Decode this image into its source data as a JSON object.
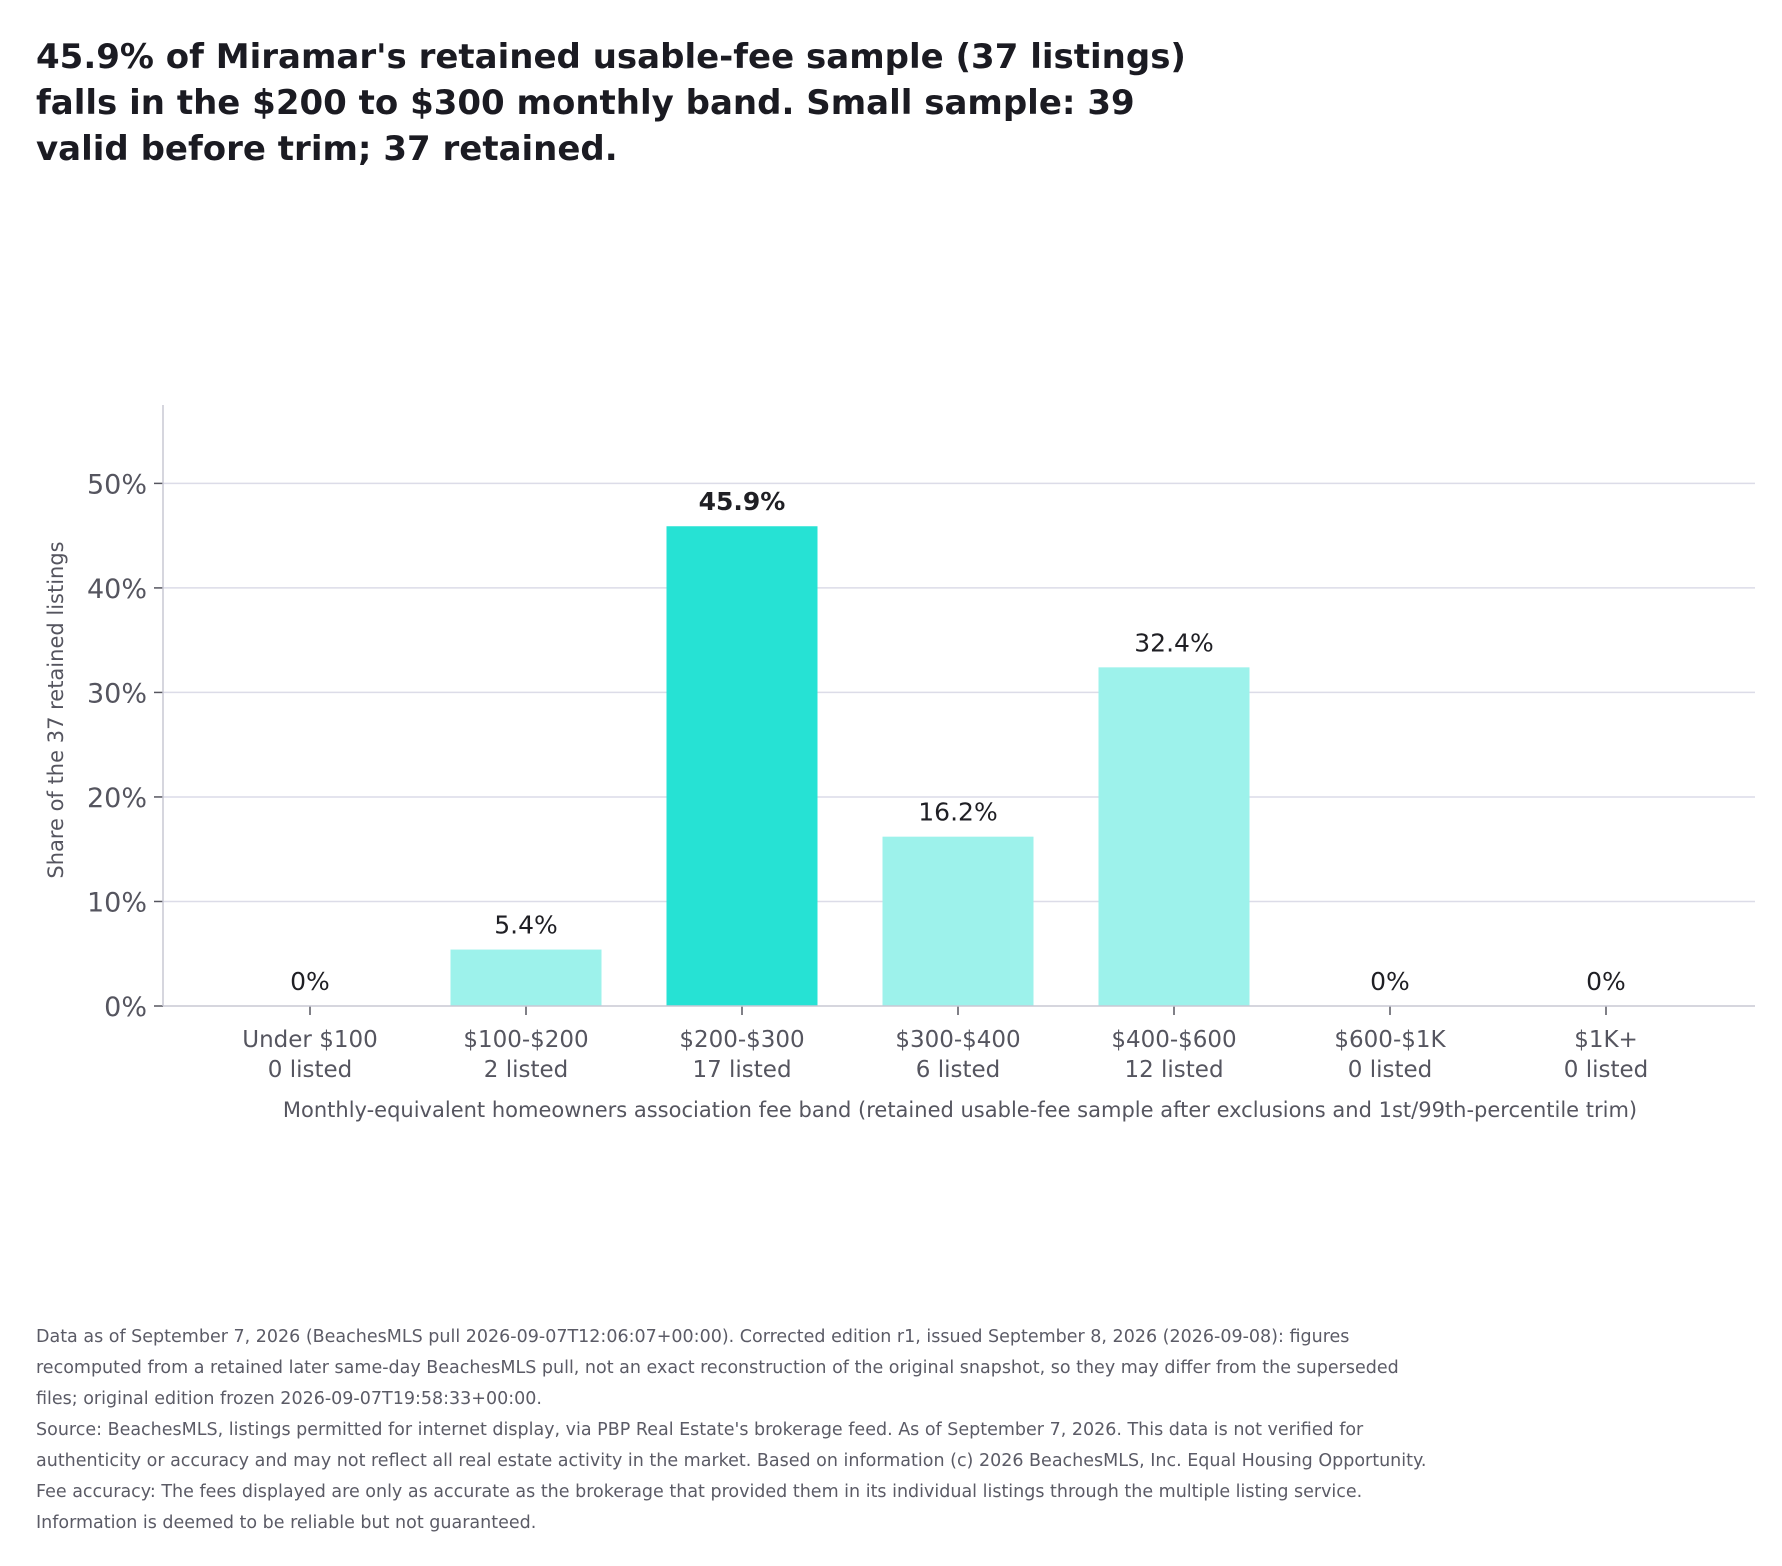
{
  "headline": "45.9% of Miramar's retained usable-fee sample (37 listings) falls in the $200 to $300 monthly band. Small sample: 39 valid before trim; 37 retained.",
  "chart_data": {
    "type": "bar",
    "title": "",
    "categories": [
      "Under $100",
      "$100-$200",
      "$200-$300",
      "$300-$400",
      "$400-$600",
      "$600-$1K",
      "$1K+"
    ],
    "category_counts": [
      "0 listed",
      "2 listed",
      "17 listed",
      "6 listed",
      "12 listed",
      "0 listed",
      "0 listed"
    ],
    "values": [
      0,
      5.4,
      45.9,
      16.2,
      32.4,
      0,
      0
    ],
    "value_labels": [
      "0%",
      "5.4%",
      "45.9%",
      "16.2%",
      "32.4%",
      "0%",
      "0%"
    ],
    "highlight_index": 2,
    "ylabel": "Share of the 37 retained listings",
    "xlabel": "Monthly-equivalent homeowners association fee band (retained usable-fee sample after exclusions and 1st/99th-percentile trim)",
    "ylim": [
      0,
      57.5
    ],
    "yticks": [
      0,
      10,
      20,
      30,
      40,
      50
    ],
    "ytick_labels": [
      "0%",
      "10%",
      "20%",
      "30%",
      "40%",
      "50%"
    ],
    "grid": true,
    "legend": "none",
    "colors": {
      "highlight": "#26e2d4",
      "bar": "#9df2eb",
      "grid": "#dcdce8",
      "axis": "#c8c8d4",
      "text": "#1f1f24",
      "muted": "#55555f"
    }
  },
  "footnotes": [
    "Data as of September 7, 2026 (BeachesMLS pull 2026-09-07T12:06:07+00:00). Corrected edition r1, issued September 8, 2026 (2026-09-08): figures recomputed from a retained later same-day BeachesMLS pull, not an exact reconstruction of the original snapshot, so they may differ from the superseded files; original edition frozen 2026-09-07T19:58:33+00:00.",
    "Source: BeachesMLS, listings permitted for internet display, via PBP Real Estate's brokerage feed. As of September 7, 2026. This data is not verified for authenticity or accuracy and may not reflect all real estate activity in the market. Based on information (c) 2026 BeachesMLS, Inc. Equal Housing Opportunity. Fee accuracy: The fees displayed are only as accurate as the brokerage that provided them in its individual listings through the multiple listing service. Information is deemed to be reliable but not guaranteed."
  ]
}
